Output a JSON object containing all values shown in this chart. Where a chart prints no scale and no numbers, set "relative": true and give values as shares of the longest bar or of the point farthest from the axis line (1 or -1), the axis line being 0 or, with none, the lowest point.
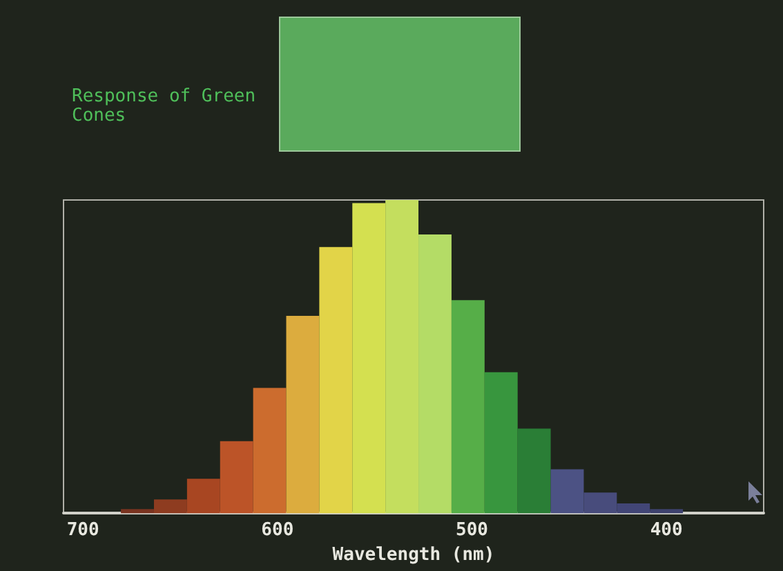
{
  "chart_data": {
    "type": "bar",
    "title": "Response of Green Cones",
    "xlabel": "Wavelength (nm)",
    "relative": true,
    "x": [
      672,
      655,
      638,
      621,
      604,
      587,
      570,
      553,
      536,
      519,
      502,
      485,
      468,
      451,
      434,
      417,
      400
    ],
    "values": [
      0.013,
      0.044,
      0.11,
      0.23,
      0.4,
      0.63,
      0.85,
      0.99,
      1,
      0.89,
      0.68,
      0.45,
      0.27,
      0.14,
      0.066,
      0.031,
      0.013
    ],
    "colors": [
      "#7a3420",
      "#8e3c20",
      "#a84622",
      "#bc5428",
      "#cc6c2e",
      "#dcac3e",
      "#e2d448",
      "#d4e050",
      "#c4de5e",
      "#b4dc66",
      "#56ae48",
      "#38963e",
      "#2a7e36",
      "#4c5284",
      "#484c7c",
      "#424676",
      "#3e426e"
    ],
    "xlim": [
      710,
      350
    ],
    "xticks": [
      700,
      600,
      500,
      400
    ],
    "grid": false
  }
}
